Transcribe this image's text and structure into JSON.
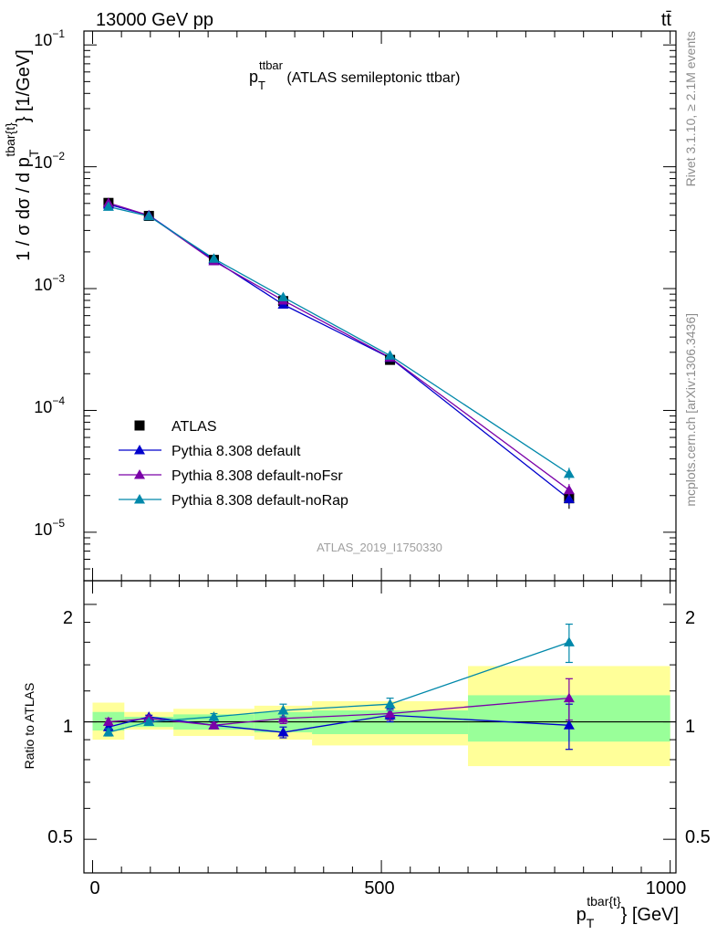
{
  "header": {
    "energy_label": "13000 GeV pp",
    "process_label": "tt̄"
  },
  "side": {
    "rivet_label": "Rivet 3.1.10, ≥ 2.1M events",
    "mcplots_label": "mcplots.cern.ch [arXiv:1306.3436]"
  },
  "plot_title": {
    "main": "p",
    "sub": "T",
    "sup": "ttbar",
    "rest": " (ATLAS semileptonic ttbar)"
  },
  "analysis_label": "ATLAS_2019_I1750330",
  "axes": {
    "ylabel_main": "1 / σ dσ / d p",
    "ylabel_sub": "T",
    "ylabel_sup": "tbar{t}",
    "ylabel_tail": "} [1/GeV]",
    "ratio_ylabel": "Ratio to ATLAS",
    "xlabel_main": "p",
    "xlabel_sub": "T",
    "xlabel_sup": "tbar{t}",
    "xlabel_tail": "} [GeV]",
    "main_ytick_labels": [
      {
        "base": "10",
        "exp": "−1"
      },
      {
        "base": "10",
        "exp": "−2"
      },
      {
        "base": "10",
        "exp": "−3"
      },
      {
        "base": "10",
        "exp": "−4"
      },
      {
        "base": "10",
        "exp": "−5"
      }
    ],
    "ratio_ytick_labels": [
      "2",
      "1",
      "0.5"
    ],
    "xtick_labels": [
      "0",
      "500",
      "1000"
    ]
  },
  "colors": {
    "data": "#000000",
    "default": "#0000cc",
    "noFsr": "#7a00a8",
    "noRap": "#0088aa",
    "band_inner": "#99ff99",
    "band_outer": "#ffff99"
  },
  "chart_data": {
    "type": "line",
    "x_scale": "linear",
    "y_scale": "log",
    "xlim": [
      -15,
      1010
    ],
    "ylim": [
      4e-06,
      0.13
    ],
    "ratio_ylim": [
      0.41,
      2.3
    ],
    "ratio_y_scale": "log",
    "bins": [
      {
        "lo": 0,
        "hi": 55,
        "x": 27.5
      },
      {
        "lo": 55,
        "hi": 140,
        "x": 97.5
      },
      {
        "lo": 140,
        "hi": 280,
        "x": 210
      },
      {
        "lo": 280,
        "hi": 380,
        "x": 330
      },
      {
        "lo": 380,
        "hi": 650,
        "x": 515
      },
      {
        "lo": 650,
        "hi": 1000,
        "x": 825
      }
    ],
    "data_values": [
      0.00505,
      0.00395,
      0.00172,
      0.00079,
      0.00026,
      1.9e-05
    ],
    "ratio_band_inner": [
      [
        0.95,
        1.06
      ],
      [
        0.97,
        1.03
      ],
      [
        0.955,
        1.045
      ],
      [
        0.94,
        1.06
      ],
      [
        0.93,
        1.07
      ],
      [
        0.89,
        1.17
      ]
    ],
    "ratio_band_outer": [
      [
        0.9,
        1.12
      ],
      [
        0.955,
        1.06
      ],
      [
        0.92,
        1.08
      ],
      [
        0.9,
        1.1
      ],
      [
        0.87,
        1.13
      ],
      [
        0.77,
        1.39
      ]
    ],
    "series": [
      {
        "name": "Pythia 8.308 default",
        "key": "default",
        "marker": "triangle",
        "values": [
          0.0049,
          0.004,
          0.00172,
          0.00074,
          0.00027,
          1.88e-05
        ],
        "ratio": [
          0.97,
          1.03,
          0.98,
          0.94,
          1.04,
          0.98
        ],
        "ratio_err": [
          0.02,
          0.01,
          0.015,
          0.03,
          0.04,
          0.13
        ]
      },
      {
        "name": "Pythia 8.308 default-noFsr",
        "key": "noFsr",
        "marker": "triangle",
        "values": [
          0.00505,
          0.00398,
          0.00168,
          0.0008,
          0.000272,
          2.22e-05
        ],
        "ratio": [
          1.0,
          1.02,
          0.98,
          1.02,
          1.05,
          1.15
        ],
        "ratio_err": [
          0.02,
          0.01,
          0.015,
          0.03,
          0.04,
          0.14
        ]
      },
      {
        "name": "Pythia 8.308 default-noRap",
        "key": "noRap",
        "marker": "triangle",
        "values": [
          0.0047,
          0.00393,
          0.00176,
          0.00085,
          0.000282,
          3.02e-05
        ],
        "ratio": [
          0.94,
          1.0,
          1.03,
          1.07,
          1.11,
          1.6
        ],
        "ratio_err": [
          0.02,
          0.01,
          0.02,
          0.04,
          0.04,
          0.18
        ]
      }
    ],
    "legend": [
      {
        "label": "ATLAS",
        "key": "data",
        "marker": "square"
      },
      {
        "label": "Pythia 8.308 default",
        "key": "default",
        "marker": "triangle"
      },
      {
        "label": "Pythia 8.308 default-noFsr",
        "key": "noFsr",
        "marker": "triangle"
      },
      {
        "label": "Pythia 8.308 default-noRap",
        "key": "noRap",
        "marker": "triangle"
      }
    ],
    "legend_position": "bottom-left"
  }
}
